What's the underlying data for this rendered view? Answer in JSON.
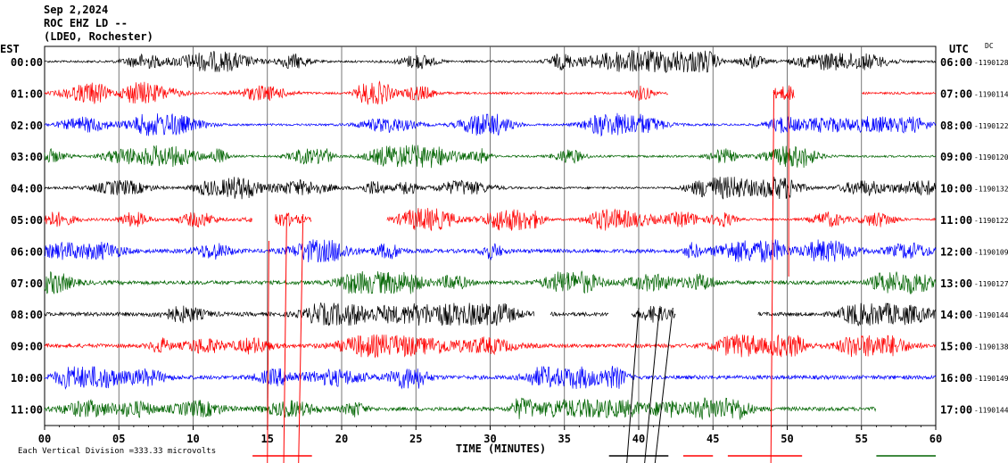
{
  "header": {
    "date": "Sep 2,2024",
    "station": "ROC EHZ LD --",
    "network": "(LDEO, Rochester)"
  },
  "left_zone_label": "EST",
  "right_zone_label": "UTC",
  "dc_label": "DC",
  "footer": {
    "scale_prefix": "Each Vertical Division = ",
    "scale_value": "333.33 microvolts"
  },
  "colors": {
    "black": "#000000",
    "red": "#ff0000",
    "blue": "#0000ff",
    "green": "#006400",
    "grid": "#000000"
  },
  "chart_data": {
    "type": "line",
    "xlabel": "TIME (MINUTES)",
    "xlim": [
      0,
      60
    ],
    "x_ticks": [
      "00",
      "05",
      "10",
      "15",
      "20",
      "25",
      "30",
      "35",
      "40",
      "45",
      "50",
      "55",
      "60"
    ],
    "rows": [
      {
        "est": "00:00",
        "utc": "06:00",
        "dc": "-1190128",
        "color": "black"
      },
      {
        "est": "01:00",
        "utc": "07:00",
        "dc": "-1190114",
        "color": "red"
      },
      {
        "est": "02:00",
        "utc": "08:00",
        "dc": "-1190122",
        "color": "blue"
      },
      {
        "est": "03:00",
        "utc": "09:00",
        "dc": "-1190120",
        "color": "green"
      },
      {
        "est": "04:00",
        "utc": "10:00",
        "dc": "-1190132",
        "color": "black"
      },
      {
        "est": "05:00",
        "utc": "11:00",
        "dc": "-1190122",
        "color": "red"
      },
      {
        "est": "06:00",
        "utc": "12:00",
        "dc": "-1190109",
        "color": "blue"
      },
      {
        "est": "07:00",
        "utc": "13:00",
        "dc": "-1190127",
        "color": "green"
      },
      {
        "est": "08:00",
        "utc": "14:00",
        "dc": "-1190144",
        "color": "black"
      },
      {
        "est": "09:00",
        "utc": "15:00",
        "dc": "-1190138",
        "color": "red"
      },
      {
        "est": "10:00",
        "utc": "16:00",
        "dc": "-1190149",
        "color": "blue"
      },
      {
        "est": "11:00",
        "utc": "17:00",
        "dc": "-1190144",
        "color": "green"
      }
    ],
    "gaps_minutes": [
      {
        "row": 1,
        "ranges": [
          [
            42,
            49
          ],
          [
            50.5,
            55
          ]
        ]
      },
      {
        "row": 5,
        "ranges": [
          [
            14,
            15.5
          ],
          [
            18,
            23
          ]
        ]
      },
      {
        "row": 8,
        "ranges": [
          [
            33,
            34
          ],
          [
            38,
            39.5
          ],
          [
            42.5,
            48
          ]
        ]
      },
      {
        "row": 11,
        "ranges": [
          [
            56,
            60
          ]
        ]
      }
    ],
    "grid": true
  }
}
